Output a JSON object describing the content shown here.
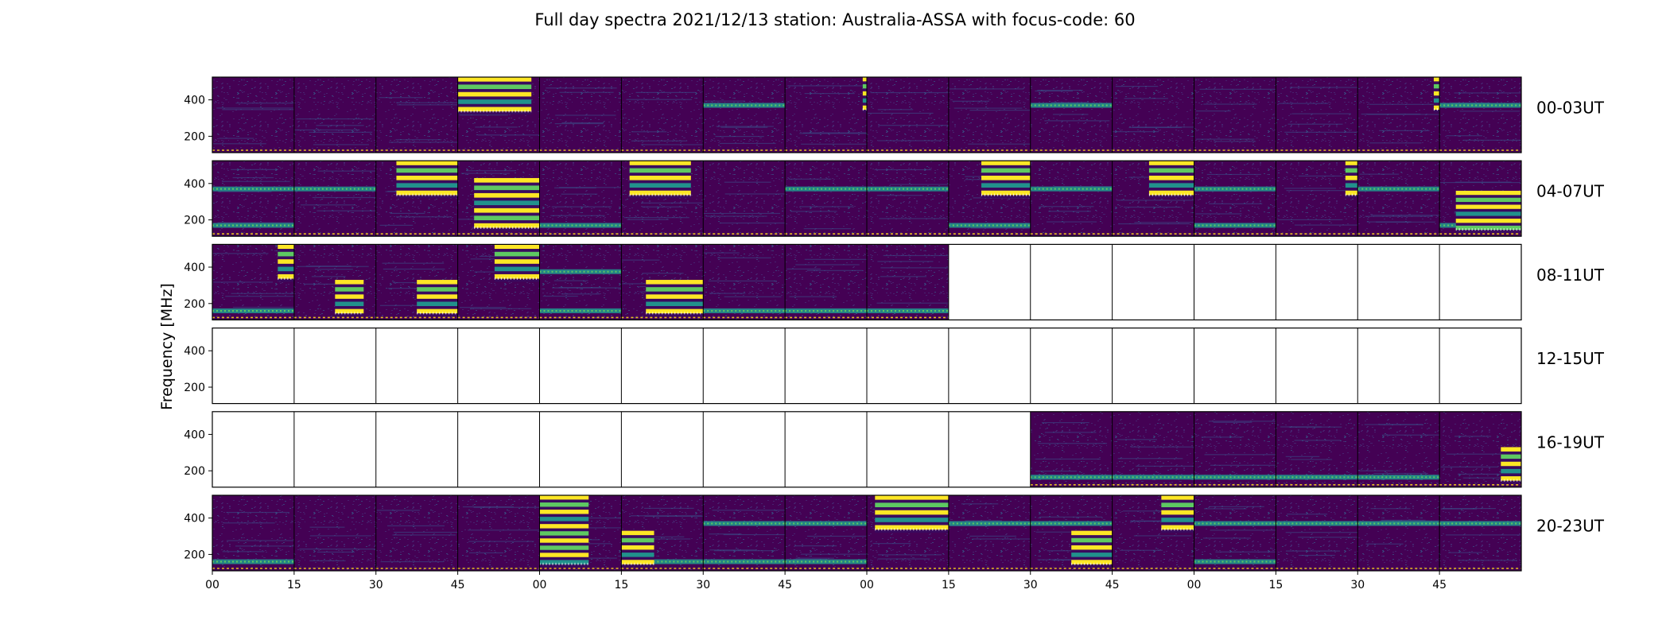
{
  "chart_data": {
    "type": "heatmap",
    "title": "Full day spectra 2021/12/13 station: Australia-ASSA with focus-code: 60",
    "ylabel": "Frequency [MHz]",
    "xlabel": "",
    "ylim": [
      110,
      525
    ],
    "yticks": [
      200,
      400
    ],
    "xtick_labels": [
      "00",
      "15",
      "30",
      "45",
      "00",
      "15",
      "30",
      "45",
      "00",
      "15",
      "30",
      "45",
      "00",
      "15",
      "30",
      "45"
    ],
    "panels_per_row": 16,
    "minutes_per_panel": 15,
    "colormap": [
      "#440154",
      "#3b528b",
      "#21918c",
      "#5ec962",
      "#fde725"
    ],
    "rows": [
      {
        "label": "00-03UT",
        "has_data": [
          1,
          1,
          1,
          1,
          1,
          1,
          1,
          1,
          1,
          1,
          1,
          1,
          1,
          1,
          1,
          1
        ]
      },
      {
        "label": "04-07UT",
        "has_data": [
          1,
          1,
          1,
          1,
          1,
          1,
          1,
          1,
          1,
          1,
          1,
          1,
          1,
          1,
          1,
          1
        ]
      },
      {
        "label": "08-11UT",
        "has_data": [
          1,
          1,
          1,
          1,
          1,
          1,
          1,
          1,
          1,
          0,
          0,
          0,
          0,
          0,
          0,
          0
        ]
      },
      {
        "label": "12-15UT",
        "has_data": [
          0,
          0,
          0,
          0,
          0,
          0,
          0,
          0,
          0,
          0,
          0,
          0,
          0,
          0,
          0,
          0
        ]
      },
      {
        "label": "16-19UT",
        "has_data": [
          0,
          0,
          0,
          0,
          0,
          0,
          0,
          0,
          0,
          0,
          1,
          1,
          1,
          1,
          1,
          1
        ]
      },
      {
        "label": "20-23UT",
        "has_data": [
          1,
          1,
          1,
          1,
          1,
          1,
          1,
          1,
          1,
          1,
          1,
          1,
          1,
          1,
          1,
          1
        ]
      }
    ],
    "bursts": [
      {
        "row": 0,
        "panel": 3,
        "f_low": 320,
        "f_high": 525,
        "start": 0.0,
        "end": 0.9
      },
      {
        "row": 0,
        "panel": 7,
        "f_low": 330,
        "f_high": 525,
        "start": 0.95,
        "end": 1.0
      },
      {
        "row": 0,
        "panel": 14,
        "f_low": 330,
        "f_high": 525,
        "start": 0.93,
        "end": 1.0
      },
      {
        "row": 1,
        "panel": 2,
        "f_low": 320,
        "f_high": 525,
        "start": 0.25,
        "end": 1.0
      },
      {
        "row": 1,
        "panel": 3,
        "f_low": 140,
        "f_high": 430,
        "start": 0.2,
        "end": 1.0
      },
      {
        "row": 1,
        "panel": 5,
        "f_low": 320,
        "f_high": 525,
        "start": 0.1,
        "end": 0.85
      },
      {
        "row": 1,
        "panel": 9,
        "f_low": 320,
        "f_high": 525,
        "start": 0.4,
        "end": 1.0
      },
      {
        "row": 1,
        "panel": 11,
        "f_low": 320,
        "f_high": 525,
        "start": 0.45,
        "end": 1.0
      },
      {
        "row": 1,
        "panel": 13,
        "f_low": 320,
        "f_high": 525,
        "start": 0.85,
        "end": 1.0
      },
      {
        "row": 1,
        "panel": 15,
        "f_low": 130,
        "f_high": 360,
        "start": 0.2,
        "end": 1.0
      },
      {
        "row": 2,
        "panel": 0,
        "f_low": 320,
        "f_high": 525,
        "start": 0.8,
        "end": 1.0
      },
      {
        "row": 2,
        "panel": 1,
        "f_low": 130,
        "f_high": 330,
        "start": 0.5,
        "end": 0.85
      },
      {
        "row": 2,
        "panel": 2,
        "f_low": 130,
        "f_high": 330,
        "start": 0.5,
        "end": 1.0
      },
      {
        "row": 2,
        "panel": 3,
        "f_low": 320,
        "f_high": 525,
        "start": 0.45,
        "end": 1.0
      },
      {
        "row": 2,
        "panel": 5,
        "f_low": 130,
        "f_high": 330,
        "start": 0.3,
        "end": 1.0
      },
      {
        "row": 4,
        "panel": 15,
        "f_low": 130,
        "f_high": 330,
        "start": 0.75,
        "end": 1.0
      },
      {
        "row": 5,
        "panel": 4,
        "f_low": 130,
        "f_high": 525,
        "start": 0.0,
        "end": 0.6
      },
      {
        "row": 5,
        "panel": 5,
        "f_low": 130,
        "f_high": 330,
        "start": 0.0,
        "end": 0.4
      },
      {
        "row": 5,
        "panel": 8,
        "f_low": 320,
        "f_high": 525,
        "start": 0.1,
        "end": 1.0
      },
      {
        "row": 5,
        "panel": 10,
        "f_low": 130,
        "f_high": 330,
        "start": 0.5,
        "end": 1.0
      },
      {
        "row": 5,
        "panel": 11,
        "f_low": 320,
        "f_high": 525,
        "start": 0.6,
        "end": 1.0
      }
    ],
    "bands": [
      {
        "row": 0,
        "panels": [
          6,
          10,
          15
        ],
        "freq": 370
      },
      {
        "row": 1,
        "panels": [
          0,
          1,
          7,
          8,
          10,
          12,
          14
        ],
        "freq": 370
      },
      {
        "row": 1,
        "panels": [
          0,
          4,
          9,
          12,
          15
        ],
        "freq": 170
      },
      {
        "row": 2,
        "panels": [
          0,
          4,
          6,
          7,
          8
        ],
        "freq": 160
      },
      {
        "row": 2,
        "panels": [
          4
        ],
        "freq": 375
      },
      {
        "row": 4,
        "panels": [
          10,
          11,
          12,
          13,
          14
        ],
        "freq": 165
      },
      {
        "row": 5,
        "panels": [
          6,
          7,
          9,
          10,
          12,
          13,
          14,
          15
        ],
        "freq": 370
      },
      {
        "row": 5,
        "panels": [
          0,
          5,
          6,
          7,
          12
        ],
        "freq": 160
      }
    ]
  }
}
